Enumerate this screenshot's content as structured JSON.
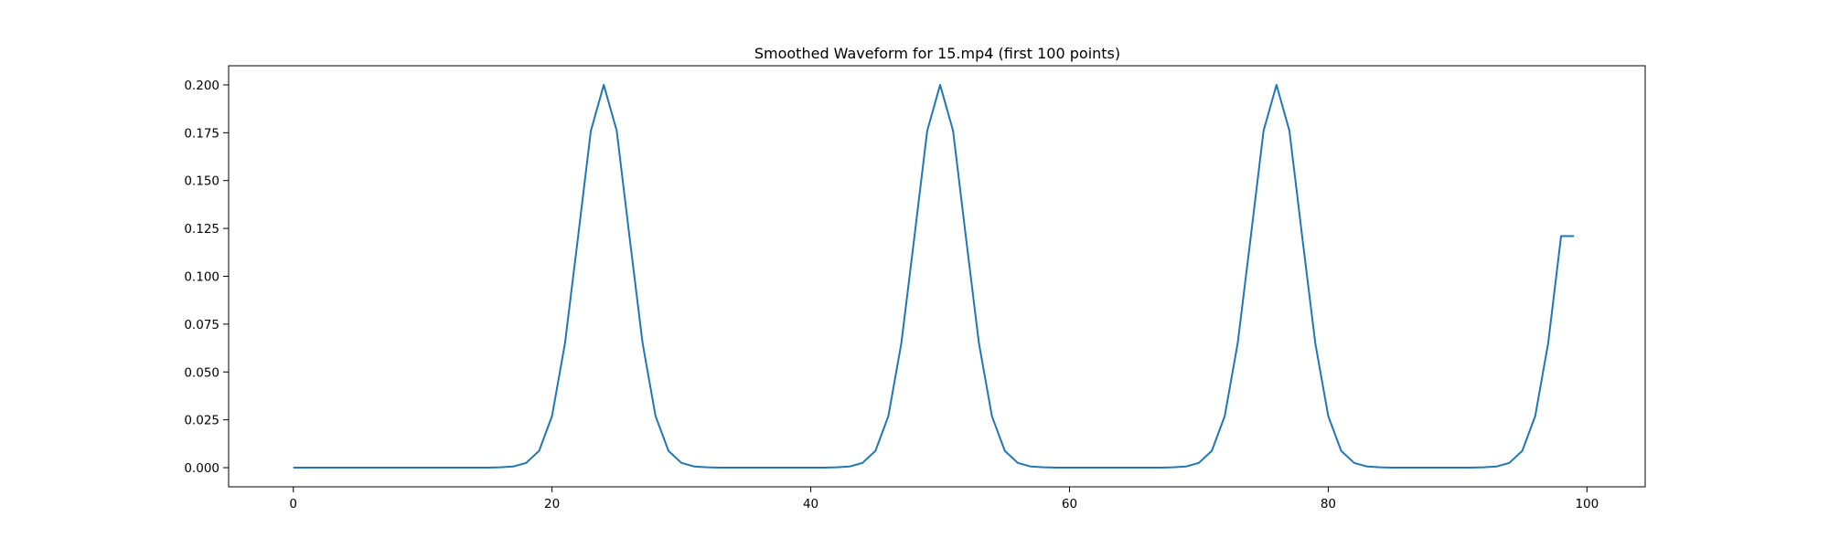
{
  "chart_data": {
    "type": "line",
    "title": "Smoothed Waveform for 15.mp4 (first 100 points)",
    "xlabel": "",
    "ylabel": "",
    "xlim": [
      -5,
      104.5
    ],
    "ylim": [
      -0.01,
      0.21
    ],
    "x_ticks": [
      0,
      20,
      40,
      60,
      80,
      100
    ],
    "x_tick_labels": [
      "0",
      "20",
      "40",
      "60",
      "80",
      "100"
    ],
    "y_ticks": [
      0,
      0.025,
      0.05,
      0.075,
      0.1,
      0.125,
      0.15,
      0.175,
      0.2
    ],
    "y_tick_labels": [
      "0.000",
      "0.025",
      "0.050",
      "0.075",
      "0.100",
      "0.125",
      "0.150",
      "0.175",
      "0.200"
    ],
    "grid": false,
    "series": [
      {
        "color": "#1f77b4",
        "x": [
          0,
          1,
          2,
          3,
          4,
          5,
          6,
          7,
          8,
          9,
          10,
          11,
          12,
          13,
          14,
          15,
          16,
          17,
          18,
          19,
          20,
          21,
          22,
          23,
          24,
          25,
          26,
          27,
          28,
          29,
          30,
          31,
          32,
          33,
          34,
          35,
          36,
          37,
          38,
          39,
          40,
          41,
          42,
          43,
          44,
          45,
          46,
          47,
          48,
          49,
          50,
          51,
          52,
          53,
          54,
          55,
          56,
          57,
          58,
          59,
          60,
          61,
          62,
          63,
          64,
          65,
          66,
          67,
          68,
          69,
          70,
          71,
          72,
          73,
          74,
          75,
          76,
          77,
          78,
          79,
          80,
          81,
          82,
          83,
          84,
          85,
          86,
          87,
          88,
          89,
          90,
          91,
          92,
          93,
          94,
          95,
          96,
          97,
          98,
          99
        ],
        "y": [
          0,
          0,
          0,
          0,
          0,
          0,
          0,
          0,
          0,
          0,
          0,
          0,
          0,
          0,
          0,
          0,
          0.0002,
          0.0006,
          0.0025,
          0.0088,
          0.027,
          0.065,
          0.12,
          0.176,
          0.2,
          0.176,
          0.12,
          0.065,
          0.027,
          0.0088,
          0.0025,
          0.0006,
          0.0002,
          0,
          0,
          0,
          0,
          0,
          0,
          0,
          0,
          0,
          0.0002,
          0.0006,
          0.0025,
          0.0088,
          0.027,
          0.065,
          0.12,
          0.176,
          0.2,
          0.176,
          0.12,
          0.065,
          0.027,
          0.0088,
          0.0025,
          0.0006,
          0.0002,
          0,
          0,
          0,
          0,
          0,
          0,
          0,
          0,
          0,
          0.0002,
          0.0006,
          0.0025,
          0.0088,
          0.027,
          0.065,
          0.12,
          0.176,
          0.2,
          0.176,
          0.12,
          0.065,
          0.027,
          0.0088,
          0.0025,
          0.0006,
          0.0002,
          0,
          0,
          0,
          0,
          0,
          0,
          0,
          0.0002,
          0.0006,
          0.0025,
          0.0088,
          0.027,
          0.065,
          0.121,
          0.121
        ]
      }
    ]
  }
}
